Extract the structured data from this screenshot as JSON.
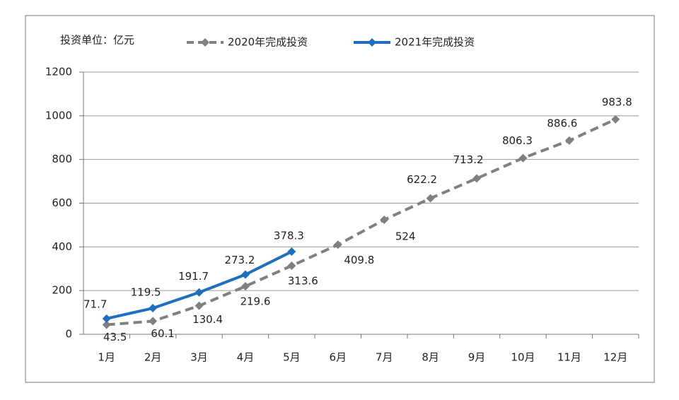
{
  "chart_data": {
    "type": "line",
    "unit_label": "投资单位：亿元",
    "categories": [
      "1月",
      "2月",
      "3月",
      "4月",
      "5月",
      "6月",
      "7月",
      "8月",
      "9月",
      "10月",
      "11月",
      "12月"
    ],
    "series": [
      {
        "name": "2020年完成投资",
        "color": "#808080",
        "dashed": true,
        "values": [
          43.5,
          60.1,
          130.4,
          219.6,
          313.6,
          409.8,
          524,
          622.2,
          713.2,
          806.3,
          886.6,
          983.8
        ]
      },
      {
        "name": "2021年完成投资",
        "color": "#1f6fbf",
        "dashed": false,
        "values": [
          71.7,
          119.5,
          191.7,
          273.2,
          378.3,
          null,
          null,
          null,
          null,
          null,
          null,
          null
        ]
      }
    ],
    "ylim": [
      0,
      1200
    ],
    "yticks": [
      0,
      200,
      400,
      600,
      800,
      1000,
      1200
    ],
    "grid": true
  }
}
